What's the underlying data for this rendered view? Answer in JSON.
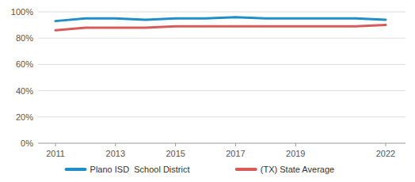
{
  "chart_data": {
    "type": "line",
    "x": [
      2011,
      2012,
      2013,
      2014,
      2015,
      2016,
      2017,
      2018,
      2019,
      2020,
      2021,
      2022
    ],
    "series": [
      {
        "name": "Plano ISD  School District",
        "color": "#1f8fc8",
        "values": [
          93,
          95,
          95,
          94,
          95,
          95,
          96,
          95,
          95,
          95,
          95,
          94
        ]
      },
      {
        "name": "(TX) State Average",
        "color": "#d85b5b",
        "values": [
          86,
          88,
          88,
          88,
          89,
          89,
          89,
          89,
          89,
          89,
          89,
          90
        ]
      }
    ],
    "xlim": [
      2011,
      2022
    ],
    "xticks": [
      2011,
      2013,
      2015,
      2017,
      2019,
      2022
    ],
    "ylim": [
      0,
      100
    ],
    "yticks": [
      {
        "value": 0,
        "label": "0%"
      },
      {
        "value": 20,
        "label": "20%"
      },
      {
        "value": 40,
        "label": "40%"
      },
      {
        "value": 60,
        "label": "60%"
      },
      {
        "value": 80,
        "label": "80%"
      },
      {
        "value": 100,
        "label": "100%"
      }
    ],
    "grid": true,
    "legend": "bottom"
  }
}
